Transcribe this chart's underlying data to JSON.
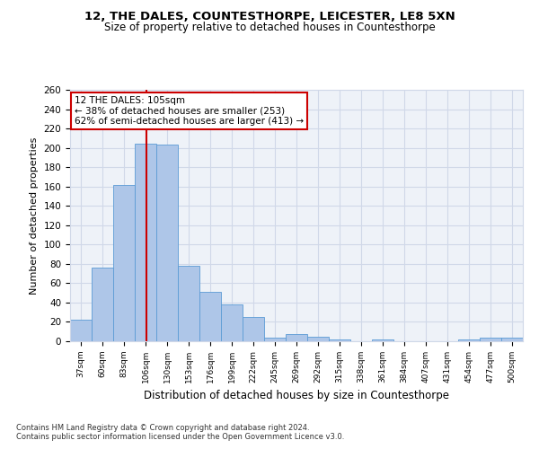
{
  "title1": "12, THE DALES, COUNTESTHORPE, LEICESTER, LE8 5XN",
  "title2": "Size of property relative to detached houses in Countesthorpe",
  "xlabel": "Distribution of detached houses by size in Countesthorpe",
  "ylabel": "Number of detached properties",
  "footnote1": "Contains HM Land Registry data © Crown copyright and database right 2024.",
  "footnote2": "Contains public sector information licensed under the Open Government Licence v3.0.",
  "bar_labels": [
    "37sqm",
    "60sqm",
    "83sqm",
    "106sqm",
    "130sqm",
    "153sqm",
    "176sqm",
    "199sqm",
    "222sqm",
    "245sqm",
    "269sqm",
    "292sqm",
    "315sqm",
    "338sqm",
    "361sqm",
    "384sqm",
    "407sqm",
    "431sqm",
    "454sqm",
    "477sqm",
    "500sqm"
  ],
  "bar_values": [
    22,
    76,
    162,
    204,
    203,
    78,
    51,
    38,
    25,
    4,
    7,
    5,
    2,
    0,
    2,
    0,
    0,
    0,
    2,
    4,
    4
  ],
  "bar_color": "#aec6e8",
  "bar_edge_color": "#5b9bd5",
  "grid_color": "#d0d8e8",
  "background_color": "#eef2f8",
  "property_label": "12 THE DALES: 105sqm",
  "annotation_line1": "← 38% of detached houses are smaller (253)",
  "annotation_line2": "62% of semi-detached houses are larger (413) →",
  "vline_color": "#cc0000",
  "vline_x_index": 3.04,
  "annotation_box_color": "#ffffff",
  "annotation_border_color": "#cc0000",
  "ylim": [
    0,
    260
  ],
  "yticks": [
    0,
    20,
    40,
    60,
    80,
    100,
    120,
    140,
    160,
    180,
    200,
    220,
    240,
    260
  ]
}
